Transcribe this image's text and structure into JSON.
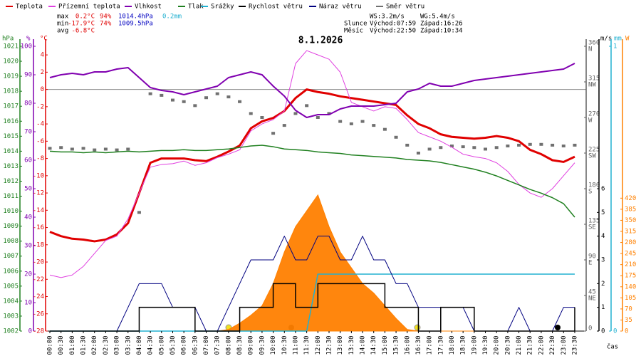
{
  "chart_data": {
    "type": "meteo",
    "title": "8.1.2026",
    "x_label": "čas",
    "categories": [
      "00:00",
      "00:30",
      "01:00",
      "01:30",
      "02:00",
      "02:30",
      "03:00",
      "03:30",
      "04:00",
      "04:30",
      "05:00",
      "05:30",
      "06:00",
      "06:30",
      "07:00",
      "07:30",
      "08:00",
      "08:30",
      "09:00",
      "09:30",
      "10:00",
      "10:30",
      "11:00",
      "11:30",
      "12:00",
      "12:30",
      "13:00",
      "13:30",
      "14:00",
      "14:30",
      "15:00",
      "15:30",
      "16:00",
      "16:30",
      "17:00",
      "17:30",
      "18:00",
      "18:30",
      "19:00",
      "19:30",
      "20:00",
      "20:30",
      "21:00",
      "21:30",
      "22:00",
      "22:30",
      "23:00",
      "23:30"
    ],
    "axes": {
      "pressure": {
        "label": "hPa",
        "color": "#208020",
        "ylim": [
          1002,
          1021
        ],
        "yticks": [
          1002,
          1003,
          1004,
          1005,
          1006,
          1007,
          1008,
          1009,
          1010,
          1011,
          1012,
          1013,
          1014,
          1015,
          1016,
          1017,
          1018,
          1019,
          1020,
          1021
        ]
      },
      "humidity": {
        "label": "%",
        "color": "#8000b0",
        "ylim": [
          0,
          100
        ],
        "yticks": [
          0,
          10,
          20,
          30,
          40,
          50,
          60,
          70,
          80,
          90,
          100
        ]
      },
      "temperature": {
        "label": "°C",
        "color": "#e00000",
        "ylim": [
          -28,
          5
        ],
        "yticks": [
          -28,
          -26,
          -24,
          -22,
          -20,
          -18,
          -16,
          -14,
          -12,
          -10,
          -8,
          -6,
          -4,
          -2,
          0,
          2,
          4
        ],
        "zero_line": true
      },
      "direction": {
        "color": "#606060",
        "ylim": [
          0,
          360
        ],
        "yticks": [
          0,
          45,
          90,
          135,
          180,
          225,
          270,
          315,
          360
        ],
        "tick_names": [
          null,
          "NE",
          "E",
          "SE",
          "S",
          "SW",
          "W",
          "NW",
          "N"
        ]
      },
      "wind": {
        "label": "m/s",
        "color": "#000000",
        "ylim": [
          0,
          12
        ],
        "yticks": [
          0,
          1,
          2,
          3,
          4,
          5,
          6
        ]
      },
      "rain": {
        "label": "mm",
        "color": "#20b0d0",
        "ylim": [
          0,
          1
        ],
        "yticks": [
          0,
          1
        ]
      },
      "radiation": {
        "label": "W",
        "color": "#ff8000",
        "ylim": [
          0,
          900
        ],
        "yticks": [
          0,
          35,
          70,
          105,
          140,
          175,
          210,
          245,
          280,
          315,
          350,
          385,
          420
        ]
      }
    },
    "series": [
      {
        "name": "Teplota",
        "color": "#e00000",
        "axis": "temperature",
        "style": "line",
        "width": 3,
        "values": [
          -16.5,
          -17.0,
          -17.3,
          -17.4,
          -17.6,
          -17.4,
          -16.8,
          -15.5,
          -12.0,
          -8.5,
          -8.0,
          -8.0,
          -8.0,
          -8.2,
          -8.3,
          -7.8,
          -7.2,
          -6.5,
          -4.5,
          -3.7,
          -3.3,
          -2.5,
          -1.0,
          0.0,
          -0.3,
          -0.5,
          -0.8,
          -1.0,
          -1.2,
          -1.4,
          -1.6,
          -1.8,
          -3.0,
          -4.0,
          -4.5,
          -5.2,
          -5.5,
          -5.6,
          -5.7,
          -5.6,
          -5.4,
          -5.6,
          -6.0,
          -7.0,
          -7.5,
          -8.2,
          -8.4,
          -7.8
        ]
      },
      {
        "name": "Přízemní teplota",
        "color": "#e040e0",
        "axis": "temperature",
        "style": "line",
        "width": 1,
        "values": [
          -21.5,
          -21.8,
          -21.5,
          -20.5,
          -19.0,
          -17.5,
          -17.0,
          -15.0,
          -12.0,
          -9.0,
          -8.7,
          -8.6,
          -8.3,
          -8.8,
          -8.5,
          -7.9,
          -7.5,
          -7.0,
          -4.8,
          -4.0,
          -3.5,
          -2.5,
          3.0,
          4.5,
          4.0,
          3.5,
          2.0,
          -1.5,
          -2.0,
          -2.5,
          -2.0,
          -2.2,
          -3.5,
          -5.0,
          -5.5,
          -6.0,
          -6.7,
          -7.5,
          -7.8,
          -8.0,
          -8.5,
          -9.5,
          -11.0,
          -12.0,
          -12.5,
          -11.5,
          -10.0,
          -8.5
        ]
      },
      {
        "name": "Vlhkost",
        "color": "#8000b0",
        "axis": "humidity",
        "style": "line",
        "width": 2,
        "values": [
          89,
          90,
          90.5,
          90,
          91,
          91,
          92,
          92.5,
          89,
          85.5,
          84.5,
          84,
          83,
          84,
          85,
          86,
          89,
          90,
          91,
          90,
          86,
          82.5,
          77.5,
          75,
          76,
          76,
          78,
          79,
          79,
          79,
          79.5,
          80,
          84,
          85,
          87,
          86,
          86,
          87,
          88,
          88.5,
          89,
          89.5,
          90,
          90.5,
          91,
          91.5,
          92,
          94
        ]
      },
      {
        "name": "Tlak",
        "color": "#208020",
        "axis": "pressure",
        "style": "line",
        "width": 1.5,
        "values": [
          1014.0,
          1013.95,
          1013.95,
          1013.9,
          1013.95,
          1013.9,
          1013.95,
          1014.0,
          1013.95,
          1014.0,
          1014.05,
          1014.05,
          1014.1,
          1014.05,
          1014.05,
          1014.1,
          1014.15,
          1014.25,
          1014.35,
          1014.4,
          1014.3,
          1014.15,
          1014.1,
          1014.05,
          1013.95,
          1013.9,
          1013.85,
          1013.75,
          1013.7,
          1013.65,
          1013.6,
          1013.55,
          1013.45,
          1013.4,
          1013.35,
          1013.25,
          1013.1,
          1012.95,
          1012.8,
          1012.6,
          1012.35,
          1012.05,
          1011.75,
          1011.45,
          1011.2,
          1010.9,
          1010.5,
          1009.6
        ]
      },
      {
        "name": "Srážky",
        "color": "#20b0d0",
        "axis": "rain",
        "style": "line",
        "width": 1.5,
        "values": [
          0,
          0,
          0,
          0,
          0,
          0,
          0,
          0,
          0,
          0,
          0,
          0,
          0,
          0,
          0,
          0,
          0,
          0,
          0,
          0,
          0,
          0,
          0,
          0,
          0.2,
          0.2,
          0.2,
          0.2,
          0.2,
          0.2,
          0.2,
          0.2,
          0.2,
          0.2,
          0.2,
          0.2,
          0.2,
          0.2,
          0.2,
          0.2,
          0.2,
          0.2,
          0.2,
          0.2,
          0.2,
          0.2,
          0.2,
          0.2
        ]
      },
      {
        "name": "Rychlost větru",
        "color": "#000000",
        "axis": "wind",
        "style": "step",
        "width": 1.5,
        "values": [
          0,
          0,
          0,
          0,
          0,
          0,
          0,
          0,
          1,
          1,
          1,
          1,
          1,
          0,
          0,
          0,
          0,
          1,
          1,
          1,
          2,
          2,
          1,
          1,
          2,
          2,
          2,
          2,
          2,
          2,
          1,
          1,
          1,
          0,
          0,
          1,
          1,
          1,
          0,
          0,
          0,
          0,
          0,
          0,
          0,
          0,
          0,
          1
        ]
      },
      {
        "name": "Náraz větru",
        "color": "#000080",
        "axis": "wind",
        "style": "line",
        "width": 1,
        "values": [
          0,
          0,
          0,
          0,
          0,
          0,
          0,
          1,
          2,
          2,
          2,
          1,
          1,
          1,
          0,
          0,
          1,
          2,
          3,
          3,
          3,
          4,
          3,
          3,
          4,
          4,
          3,
          3,
          4,
          3,
          3,
          2,
          2,
          1,
          1,
          1,
          1,
          1,
          0,
          0,
          0,
          0,
          1,
          0,
          0,
          0,
          1,
          1
        ]
      },
      {
        "name": "Směr větru",
        "color": "#707070",
        "axis": "direction",
        "style": "points",
        "width": 1,
        "values": [
          231,
          232,
          230,
          231,
          229,
          230,
          229,
          230,
          150,
          300,
          298,
          292,
          290,
          285,
          295,
          300,
          296,
          290,
          275,
          270,
          250,
          260,
          275,
          285,
          270,
          275,
          265,
          262,
          265,
          260,
          255,
          245,
          235,
          225,
          230,
          232,
          234,
          233,
          232,
          230,
          232,
          234,
          235,
          236,
          236,
          235,
          234,
          235
        ]
      },
      {
        "name": null,
        "color": "#ff8000",
        "axis": "radiation",
        "style": "area",
        "width": 1,
        "values": [
          0,
          0,
          0,
          0,
          0,
          0,
          0,
          0,
          0,
          0,
          0,
          0,
          0,
          0,
          0,
          0,
          5,
          25,
          50,
          80,
          150,
          250,
          330,
          380,
          430,
          330,
          250,
          200,
          150,
          120,
          80,
          40,
          5,
          0,
          0,
          0,
          0,
          0,
          0,
          0,
          0,
          0,
          0,
          0,
          0,
          0,
          0,
          0
        ]
      }
    ],
    "stats": [
      {
        "label": "max",
        "items": [
          "0.2°C",
          "94%",
          "1014.4hPa",
          "0.2mm"
        ]
      },
      {
        "label": "min",
        "items": [
          "-17.9°C",
          "74%",
          "1009.5hPa"
        ]
      },
      {
        "label": "avg",
        "items": [
          "-6.8°C"
        ]
      }
    ],
    "info": [
      [
        "WS:3.2m/s",
        "WG:5.4m/s"
      ],
      [
        "Slunce",
        "Východ:07:59",
        "Západ:16:26"
      ],
      [
        "Měsíc",
        "Východ:22:50",
        "Západ:10:34"
      ]
    ]
  }
}
